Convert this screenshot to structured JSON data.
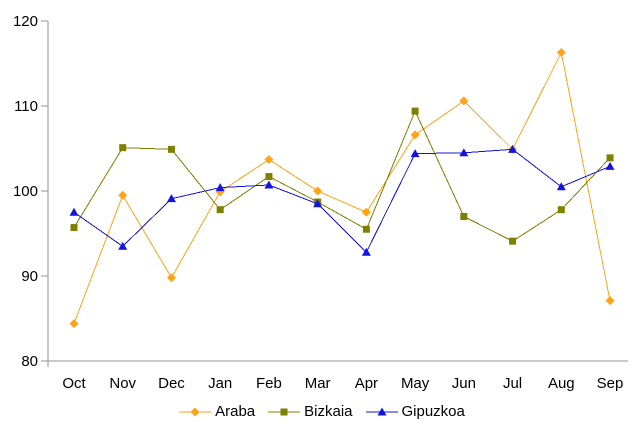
{
  "chart_data": {
    "type": "line",
    "title": "",
    "categories": [
      "Oct",
      "Nov",
      "Dec",
      "Jan",
      "Feb",
      "Mar",
      "Apr",
      "May",
      "Jun",
      "Jul",
      "Aug",
      "Sep"
    ],
    "yticks": [
      80,
      90,
      100,
      110,
      120
    ],
    "ylim": [
      80,
      120
    ],
    "xlabel": "",
    "ylabel": "",
    "grid": false,
    "legend_position": "bottom",
    "axis_color": "#969696",
    "label_color": "#000000",
    "series": [
      {
        "name": "Araba",
        "color": "#FFA319",
        "marker": "diamond",
        "values": [
          84.4,
          99.5,
          89.8,
          99.9,
          103.7,
          100.0,
          97.5,
          106.6,
          110.6,
          104.9,
          116.3,
          87.1
        ]
      },
      {
        "name": "Bizkaia",
        "color": "#808000",
        "marker": "square",
        "values": [
          95.7,
          105.1,
          104.9,
          97.8,
          101.7,
          98.7,
          95.5,
          109.4,
          97.0,
          94.1,
          97.8,
          103.9
        ]
      },
      {
        "name": "Gipuzkoa",
        "color": "#1414DB",
        "marker": "triangle",
        "values": [
          97.5,
          93.5,
          99.1,
          100.4,
          100.7,
          98.5,
          92.8,
          104.4,
          104.5,
          104.9,
          100.5,
          102.9
        ]
      }
    ]
  }
}
